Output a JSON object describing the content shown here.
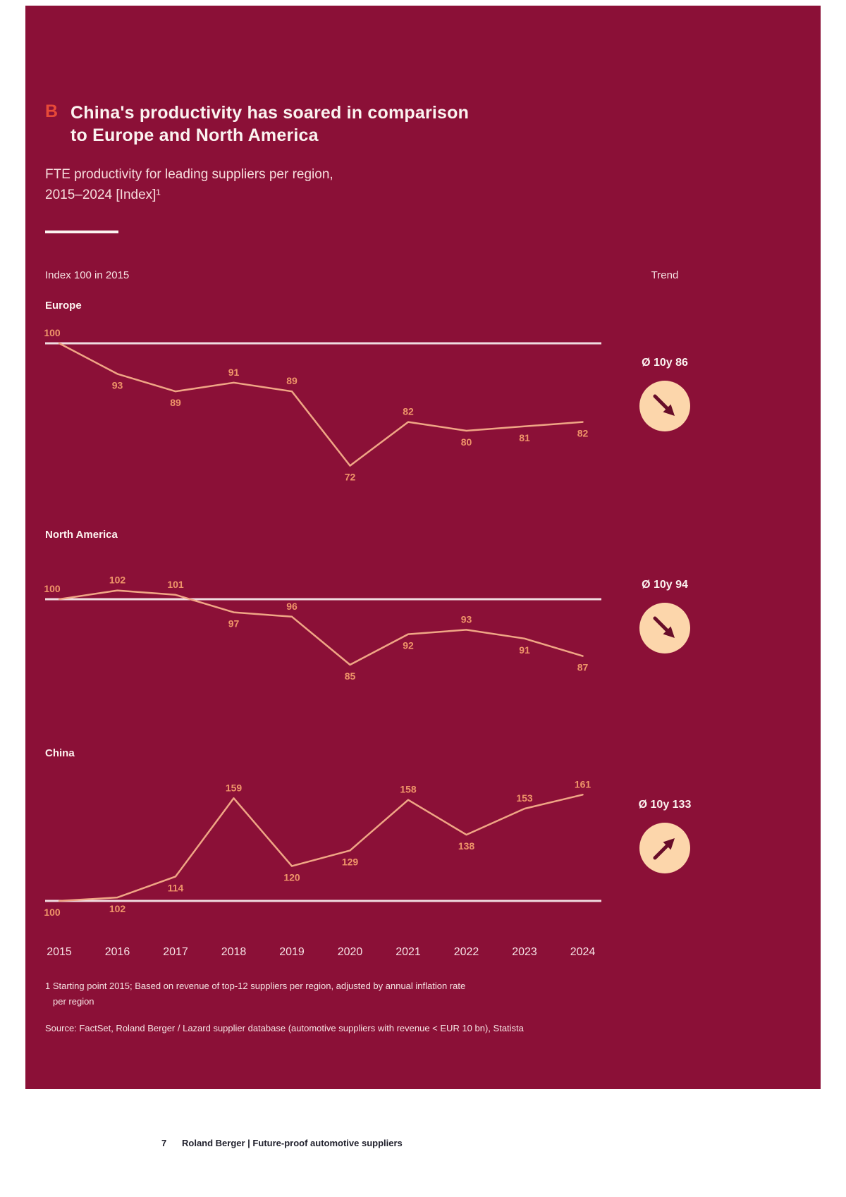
{
  "page": {
    "section_marker": "B",
    "title_line1": "China's productivity has soared in comparison",
    "title_line2": "to Europe and North America",
    "subtitle_line1": "FTE productivity for leading suppliers per region,",
    "subtitle_line2": "2015–2024 [Index]¹",
    "axis_note": "Index 100 in 2015",
    "trend_header": "Trend",
    "footnote_line1": "1 Starting point 2015; Based on revenue of top-12 suppliers per region, adjusted by annual inflation rate",
    "footnote_line2": "per region",
    "source": "Source: FactSet, Roland Berger / Lazard supplier database (automotive suppliers with revenue < EUR 10 bn), Statista",
    "footer_page_number": "7",
    "footer_text": "Roland Berger | Future-proof automotive suppliers"
  },
  "colors": {
    "background": "#8B1037",
    "line": "#F0A685",
    "value_label": "#EF9569",
    "baseline": "#F0DCE0",
    "trend_circle_fill": "#FCD6AB",
    "trend_arrow": "#670D29",
    "marker_red": "#E84A38"
  },
  "chart_data": {
    "type": "line",
    "title": "FTE productivity for leading suppliers per region, 2015–2024 [Index]",
    "x": [
      2015,
      2016,
      2017,
      2018,
      2019,
      2020,
      2021,
      2022,
      2023,
      2024
    ],
    "baseline_value": 100,
    "xlabel": "",
    "ylabel": "Index (100 in 2015)",
    "grid": false,
    "legend_position": "none",
    "series": [
      {
        "name": "Europe",
        "values": [
          100,
          93,
          89,
          91,
          89,
          72,
          82,
          80,
          81,
          82
        ],
        "trend_label": "Ø 10y 86",
        "trend_direction": "down",
        "label_sides": [
          "above",
          "below",
          "below",
          "above",
          "above",
          "below",
          "above",
          "below",
          "below",
          "below"
        ]
      },
      {
        "name": "North America",
        "values": [
          100,
          102,
          101,
          97,
          96,
          85,
          92,
          93,
          91,
          87
        ],
        "trend_label": "Ø 10y 94",
        "trend_direction": "down",
        "label_sides": [
          "above",
          "above",
          "above",
          "below",
          "above",
          "below",
          "below",
          "above",
          "below",
          "below"
        ]
      },
      {
        "name": "China",
        "values": [
          100,
          102,
          114,
          159,
          120,
          129,
          158,
          138,
          153,
          161
        ],
        "trend_label": "Ø 10y 133",
        "trend_direction": "up",
        "label_sides": [
          "below",
          "below",
          "below",
          "above",
          "below",
          "below",
          "above",
          "below",
          "above",
          "above"
        ]
      }
    ]
  }
}
